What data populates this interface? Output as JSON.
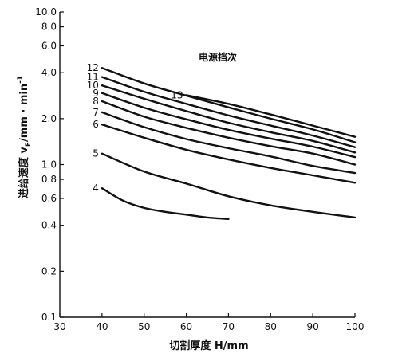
{
  "chart_data": {
    "type": "line",
    "title": "",
    "xlabel": "切割厚度 H/mm",
    "ylabel": "进给速度 v_F/mm · min⁻¹",
    "ylabel_main": "进给速度 v",
    "ylabel_sub": "F",
    "ylabel_unit": "/mm · min",
    "ylabel_sup": "-1",
    "legend_title": "电源挡次",
    "x_scale": "linear",
    "y_scale": "log",
    "xlim": [
      30,
      100
    ],
    "ylim": [
      0.1,
      10
    ],
    "x_ticks": [
      {
        "value": 30,
        "label": "30"
      },
      {
        "value": 40,
        "label": "40"
      },
      {
        "value": 50,
        "label": "50"
      },
      {
        "value": 60,
        "label": "60"
      },
      {
        "value": 70,
        "label": "70"
      },
      {
        "value": 80,
        "label": "80"
      },
      {
        "value": 90,
        "label": "90"
      },
      {
        "value": 100,
        "label": "100"
      }
    ],
    "y_ticks": [
      {
        "value": 0.1,
        "label": "0.1"
      },
      {
        "value": 0.2,
        "label": "0.2"
      },
      {
        "value": 0.4,
        "label": "0.4"
      },
      {
        "value": 0.6,
        "label": "0.6"
      },
      {
        "value": 0.8,
        "label": "0.8"
      },
      {
        "value": 1.0,
        "label": "1.0"
      },
      {
        "value": 2.0,
        "label": "2.0"
      },
      {
        "value": 4.0,
        "label": "4.0"
      },
      {
        "value": 6.0,
        "label": "6.0"
      },
      {
        "value": 8.0,
        "label": "8.0"
      },
      {
        "value": 10.0,
        "label": "10.0"
      }
    ],
    "grid": false,
    "series": [
      {
        "name": "4",
        "x": [
          40,
          45,
          50,
          55,
          60,
          65,
          70
        ],
        "y": [
          0.7,
          0.58,
          0.52,
          0.49,
          0.47,
          0.45,
          0.44
        ]
      },
      {
        "name": "5",
        "x": [
          40,
          50,
          60,
          70,
          80,
          90,
          100
        ],
        "y": [
          1.18,
          0.9,
          0.75,
          0.62,
          0.54,
          0.49,
          0.45
        ]
      },
      {
        "name": "6",
        "x": [
          40,
          50,
          60,
          70,
          80,
          90,
          100
        ],
        "y": [
          1.83,
          1.5,
          1.25,
          1.08,
          0.95,
          0.85,
          0.76
        ]
      },
      {
        "name": "7",
        "x": [
          40,
          50,
          60,
          70,
          80,
          90,
          100
        ],
        "y": [
          2.2,
          1.76,
          1.47,
          1.28,
          1.13,
          0.98,
          0.88
        ]
      },
      {
        "name": "8",
        "x": [
          40,
          50,
          60,
          70,
          80,
          90,
          100
        ],
        "y": [
          2.6,
          2.06,
          1.74,
          1.5,
          1.32,
          1.18,
          1.0
        ]
      },
      {
        "name": "9",
        "x": [
          40,
          50,
          60,
          70,
          80,
          90,
          100
        ],
        "y": [
          2.94,
          2.36,
          1.98,
          1.69,
          1.48,
          1.31,
          1.12
        ]
      },
      {
        "name": "10",
        "x": [
          40,
          50,
          60,
          70,
          80,
          90,
          100
        ],
        "y": [
          3.3,
          2.7,
          2.24,
          1.88,
          1.63,
          1.43,
          1.2
        ]
      },
      {
        "name": "11",
        "x": [
          40,
          50,
          60,
          70,
          80,
          90,
          100
        ],
        "y": [
          3.75,
          3.0,
          2.5,
          2.1,
          1.8,
          1.55,
          1.3
        ]
      },
      {
        "name": "12",
        "x": [
          40,
          50,
          60,
          70,
          80,
          90,
          100
        ],
        "y": [
          4.3,
          3.4,
          2.83,
          2.37,
          2.0,
          1.7,
          1.4
        ]
      },
      {
        "name": "13",
        "x": [
          60,
          70,
          80,
          90,
          100
        ],
        "y": [
          2.85,
          2.5,
          2.13,
          1.8,
          1.52
        ]
      }
    ]
  }
}
